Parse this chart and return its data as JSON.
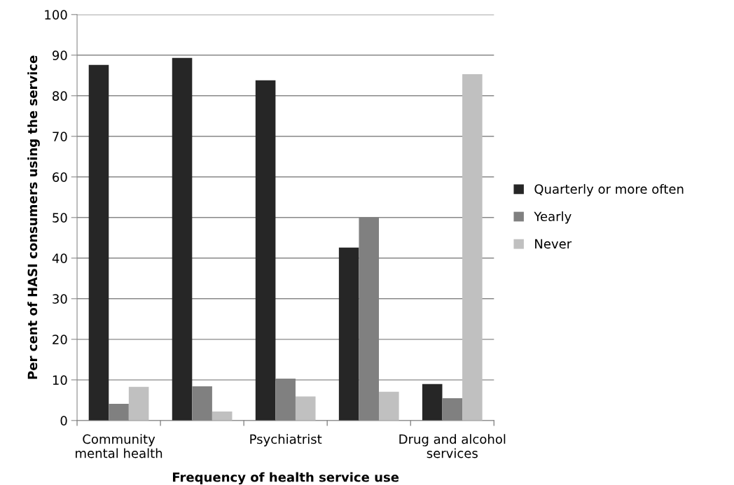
{
  "chart_data": {
    "type": "bar",
    "xlabel": "Frequency of health service use",
    "ylabel": "Per cent of HASI consumers using the service",
    "categories": [
      "Community\nmental health",
      null,
      "Psychiatrist",
      null,
      "Drug and alcohol\nservices"
    ],
    "series": [
      {
        "name": "Quarterly or more often",
        "color": "#262626",
        "values": [
          87.6,
          89.3,
          83.8,
          42.6,
          9.0
        ]
      },
      {
        "name": "Yearly",
        "color": "#808080",
        "values": [
          4.1,
          8.4,
          10.3,
          50.0,
          5.5
        ]
      },
      {
        "name": "Never",
        "color": "#c0c0c0",
        "values": [
          8.3,
          2.2,
          5.9,
          7.1,
          85.3
        ]
      }
    ],
    "ylim": [
      0,
      100
    ],
    "yticks": [
      0,
      10,
      20,
      30,
      40,
      50,
      60,
      70,
      80,
      90,
      100
    ],
    "grid": "y",
    "legend": "right"
  }
}
